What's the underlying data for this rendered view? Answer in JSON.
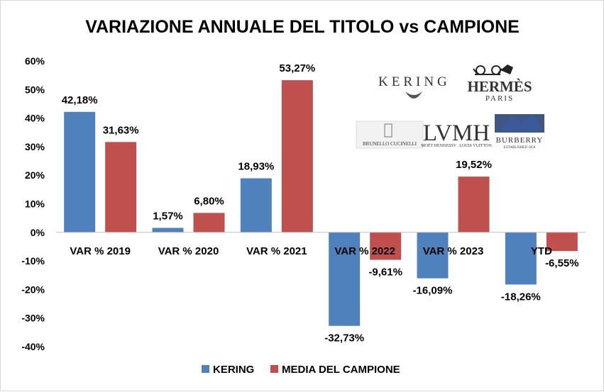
{
  "chart_data": {
    "type": "bar",
    "title": "VARIAZIONE ANNUALE DEL TITOLO vs CAMPIONE",
    "categories": [
      "VAR % 2019",
      "VAR % 2020",
      "VAR % 2021",
      "VAR % 2022",
      "VAR % 2023",
      "YTD"
    ],
    "series": [
      {
        "name": "KERING",
        "color": "#4f81bd",
        "values": [
          42.18,
          1.57,
          18.93,
          -32.73,
          -16.09,
          -18.26
        ],
        "labels": [
          "42,18%",
          "1,57%",
          "18,93%",
          "-32,73%",
          "-16,09%",
          "-18,26%"
        ]
      },
      {
        "name": "MEDIA DEL CAMPIONE",
        "color": "#c0504d",
        "values": [
          31.63,
          6.8,
          53.27,
          -9.61,
          19.52,
          -6.55
        ],
        "labels": [
          "31,63%",
          "6,80%",
          "53,27%",
          "-9,61%",
          "19,52%",
          "-6,55%"
        ]
      }
    ],
    "yticks": [
      60,
      50,
      40,
      30,
      20,
      10,
      0,
      -10,
      -20,
      -30,
      -40
    ],
    "ytick_labels": [
      "60%",
      "50%",
      "40%",
      "30%",
      "20%",
      "10%",
      "0%",
      "-10%",
      "-20%",
      "-30%",
      "-40%"
    ],
    "ylim": [
      -40,
      60
    ],
    "grid": false,
    "legend": "bottom"
  },
  "logos": {
    "kering": "KERING",
    "hermes": "HERMÈS",
    "hermes_sub": "PARIS",
    "lvmh": "LVMH",
    "lvmh_sub": "MOËT HENNESSY . LOUIS VUITTON",
    "cucinelli": "BRUNELLO CUCINELLI",
    "burberry": "BURBERRY",
    "burberry_sub": "ESTABLISHED 1856"
  }
}
